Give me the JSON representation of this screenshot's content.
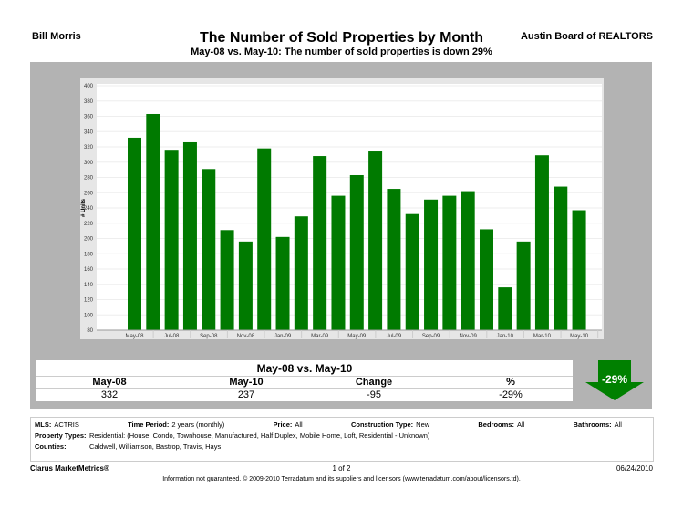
{
  "header": {
    "agent": "Bill Morris",
    "board": "Austin Board of REALTORS",
    "title": "The Number of Sold Properties by Month",
    "subtitle": "May-08 vs. May-10:  The number of sold properties is down 29%"
  },
  "chart_data": {
    "type": "bar",
    "ylabel": "# Units",
    "ylim": [
      80,
      400
    ],
    "yticks": [
      80,
      100,
      120,
      140,
      160,
      180,
      200,
      220,
      240,
      260,
      280,
      300,
      320,
      340,
      360,
      380,
      400
    ],
    "grid": true,
    "bar_color": "#007a00",
    "categories": [
      "May-08",
      "Jun-08",
      "Jul-08",
      "Aug-08",
      "Sep-08",
      "Oct-08",
      "Nov-08",
      "Dec-08",
      "Jan-09",
      "Feb-09",
      "Mar-09",
      "Apr-09",
      "May-09",
      "Jun-09",
      "Jul-09",
      "Aug-09",
      "Sep-09",
      "Oct-09",
      "Nov-09",
      "Dec-09",
      "Jan-10",
      "Feb-10",
      "Mar-10",
      "Apr-10",
      "May-10"
    ],
    "xticklabels": [
      "May-08",
      "Jul-08",
      "Sep-08",
      "Nov-08",
      "Jan-09",
      "Mar-09",
      "May-09",
      "Jul-09",
      "Sep-09",
      "Nov-09",
      "Jan-10",
      "Mar-10",
      "May-10"
    ],
    "values": [
      332,
      363,
      315,
      326,
      291,
      211,
      196,
      318,
      202,
      229,
      308,
      256,
      283,
      314,
      265,
      232,
      251,
      256,
      262,
      212,
      136,
      196,
      309,
      268,
      237
    ]
  },
  "comparison": {
    "title": "May-08 vs. May-10",
    "headers": [
      "May-08",
      "May-10",
      "Change",
      "%"
    ],
    "values": [
      "332",
      "237",
      "-95",
      "-29%"
    ],
    "badge": "-29%",
    "arrow_color": "#008000"
  },
  "info": {
    "mls_label": "MLS:",
    "mls": "ACTRIS",
    "period_label": "Time Period:",
    "period": "2 years (monthly)",
    "price_label": "Price:",
    "price": "All",
    "construction_label": "Construction Type:",
    "construction": "New",
    "bedrooms_label": "Bedrooms:",
    "bedrooms": "All",
    "bathrooms_label": "Bathrooms:",
    "bathrooms": "All",
    "types_label": "Property Types:",
    "types": "Residential: (House, Condo, Townhouse, Manufactured, Half Duplex, Mobile Home, Loft, Residential - Unknown)",
    "counties_label": "Counties:",
    "counties": "Caldwell, Williamson, Bastrop, Travis, Hays"
  },
  "footer": {
    "brand": "Clarus MarketMetrics®",
    "page": "1 of 2",
    "date": "06/24/2010",
    "disclaimer": "Information not guaranteed.  © 2009-2010 Terradatum and its suppliers and licensors (www.terradatum.com/about/licensors.td)."
  }
}
